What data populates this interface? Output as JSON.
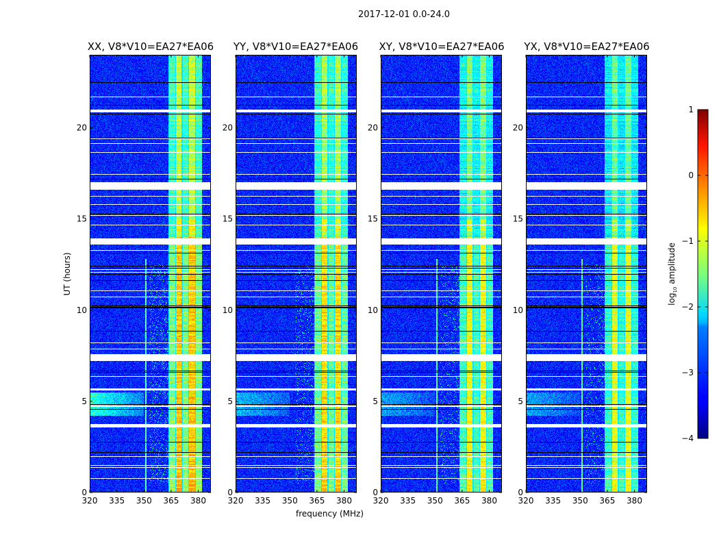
{
  "suptitle": "2017-12-01 0.0-24.0",
  "chart_data": {
    "type": "heatmap",
    "title": "2017-12-01 0.0-24.0",
    "xlabel": "frequency (MHz)",
    "ylabel": "UT (hours)",
    "xlim": [
      320,
      387
    ],
    "ylim": [
      0,
      24
    ],
    "xticks": [
      "320",
      "335",
      "350",
      "365",
      "380"
    ],
    "yticks": [
      "0",
      "5",
      "10",
      "15",
      "20"
    ],
    "panels": [
      {
        "title": "XX, V8*V10=EA27*EA06",
        "pol": "XX",
        "band_level": 0.0,
        "glow_level": 1.0,
        "line_351": true
      },
      {
        "title": "YY, V8*V10=EA27*EA06",
        "pol": "YY",
        "band_level": -0.1,
        "glow_level": 0.6,
        "line_351": false
      },
      {
        "title": "XY, V8*V10=EA27*EA06",
        "pol": "XY",
        "band_level": -0.3,
        "glow_level": 0.5,
        "line_351": true
      },
      {
        "title": "YX, V8*V10=EA27*EA06",
        "pol": "YX",
        "band_level": -0.4,
        "glow_level": 0.5,
        "line_351": true
      }
    ],
    "background_log10_amplitude": -3.2,
    "bright_band_mhz": [
      363.5,
      382
    ],
    "flagged_hours": [
      [
        20.85,
        21.0
      ],
      [
        16.6,
        17.0
      ],
      [
        13.6,
        13.95
      ],
      [
        7.2,
        7.6
      ],
      [
        5.6,
        5.72
      ],
      [
        3.55,
        3.75
      ],
      [
        1.45,
        1.5
      ]
    ],
    "colorbar": {
      "label": "log10 amplitude",
      "label_main": "log",
      "label_sub": "10",
      "label_rest": " amplitude",
      "range": [
        -4,
        1
      ],
      "ticks": [
        "1",
        "0",
        "−1",
        "−2",
        "−3",
        "−4"
      ],
      "colormap": "jet"
    }
  }
}
